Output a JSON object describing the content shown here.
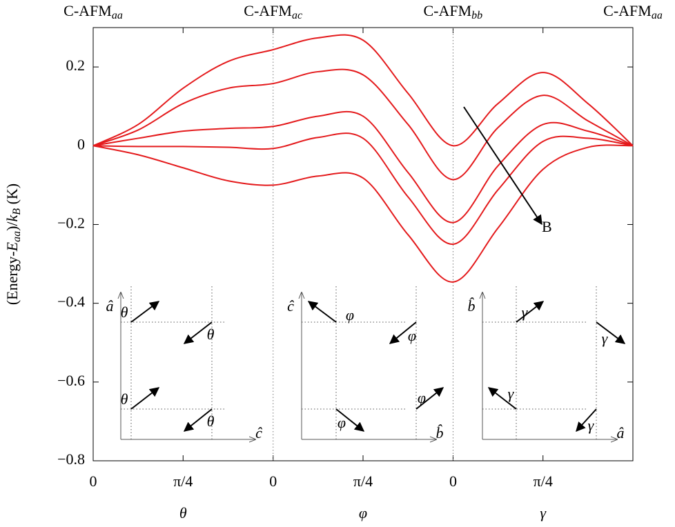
{
  "chart_data": {
    "type": "line",
    "top_labels": [
      {
        "text": "C-AFM",
        "sub": "aa"
      },
      {
        "text": "C-AFM",
        "sub": "ac"
      },
      {
        "text": "C-AFM",
        "sub": "bb"
      },
      {
        "text": "C-AFM",
        "sub": "aa"
      }
    ],
    "ylabel": [
      {
        "text": "(Energy-",
        "style": "normal"
      },
      {
        "text": "E",
        "style": "italic"
      },
      {
        "text": "aa",
        "style": "sub"
      },
      {
        "text": ")/",
        "style": "normal"
      },
      {
        "text": "k",
        "style": "italic"
      },
      {
        "text": "B",
        "style": "sub"
      },
      {
        "text": " (K)",
        "style": "normal"
      }
    ],
    "xlabels": [
      "θ",
      "φ",
      "γ"
    ],
    "x": [
      0,
      0.393,
      0.785,
      1.178,
      1.571,
      1.963,
      2.356,
      2.749,
      3.142,
      3.534,
      3.927,
      4.32,
      4.712
    ],
    "series": [
      {
        "color": "#e41a1c",
        "values": [
          0,
          0.054,
          0.146,
          0.214,
          0.244,
          0.274,
          0.268,
          0.133,
          0,
          0.107,
          0.186,
          0.107,
          0
        ]
      },
      {
        "color": "#e41a1c",
        "values": [
          0,
          0.04,
          0.107,
          0.146,
          0.158,
          0.188,
          0.18,
          0.054,
          -0.086,
          0.046,
          0.128,
          0.063,
          0
        ]
      },
      {
        "color": "#e41a1c",
        "values": [
          0,
          0.019,
          0.037,
          0.044,
          0.049,
          0.075,
          0.075,
          -0.068,
          -0.195,
          -0.051,
          0.054,
          0.037,
          0
        ]
      },
      {
        "color": "#e41a1c",
        "values": [
          0,
          -0.002,
          -0.002,
          -0.004,
          -0.007,
          0.021,
          0.019,
          -0.13,
          -0.25,
          -0.112,
          0.011,
          0.019,
          0
        ]
      },
      {
        "color": "#e41a1c",
        "values": [
          0,
          -0.023,
          -0.056,
          -0.089,
          -0.1,
          -0.077,
          -0.082,
          -0.226,
          -0.346,
          -0.209,
          -0.06,
          -0.004,
          0
        ]
      }
    ],
    "xlim": [
      0,
      4.712
    ],
    "xticks": [
      0,
      {
        "value": 0.785,
        "label": "π/4"
      },
      {
        "value": 1.571,
        "label": "0"
      },
      {
        "value": 2.356,
        "label": "π/4"
      },
      {
        "value": 3.142,
        "label": "0"
      },
      {
        "value": 3.927,
        "label": "π/4"
      }
    ],
    "ylim": [
      -0.8,
      0.3
    ],
    "yticks": [
      {
        "value": -0.8,
        "label": "−0.8"
      },
      {
        "value": -0.6,
        "label": "−0.6"
      },
      {
        "value": -0.4,
        "label": "−0.4"
      },
      {
        "value": -0.2,
        "label": "−0.2"
      },
      0,
      0.2
    ],
    "annotation": "B",
    "insets": [
      {
        "yaxis": "â",
        "xaxis": "ĉ",
        "angle": "θ"
      },
      {
        "yaxis": "ĉ",
        "xaxis": "b̂",
        "angle": "φ"
      },
      {
        "yaxis": "b̂",
        "xaxis": "â",
        "angle": "γ"
      }
    ]
  }
}
